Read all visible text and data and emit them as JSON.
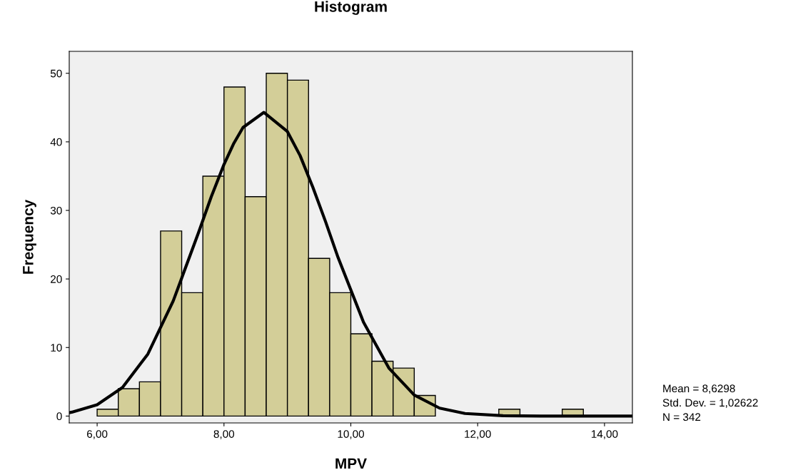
{
  "chart_data": {
    "type": "histogram",
    "title": "Histogram",
    "xlabel": "MPV",
    "ylabel": "Frequency",
    "bins": [
      6.0,
      6.3333,
      6.6667,
      7.0,
      7.3333,
      7.6667,
      8.0,
      8.3333,
      8.6667,
      9.0,
      9.3333,
      9.6667,
      10.0,
      10.3333,
      10.6667,
      11.0,
      11.3333,
      11.6667,
      12.0,
      12.3333,
      12.6667,
      13.0,
      13.3333,
      13.6667
    ],
    "values": [
      1,
      4,
      5,
      27,
      18,
      35,
      48,
      32,
      50,
      49,
      23,
      18,
      12,
      8,
      7,
      3,
      0,
      0,
      0,
      1,
      0,
      0,
      1
    ],
    "color": "#d3ce98",
    "series": [
      {
        "type": "line",
        "color": "#000000",
        "x": [
          5.56,
          5.6,
          6.0,
          6.4,
          6.8,
          7.2,
          7.6,
          7.8,
          8.0,
          8.15,
          8.3,
          8.63,
          9.0,
          9.2,
          9.4,
          9.6,
          9.8,
          10.2,
          10.6,
          11.0,
          11.4,
          11.8,
          12.4,
          13.0,
          14.44
        ],
        "values": [
          0.5,
          0.57,
          1.66,
          4.18,
          9.05,
          16.8,
          26.8,
          32.0,
          36.7,
          39.7,
          42.1,
          44.3,
          41.5,
          38.0,
          33.4,
          28.4,
          23.1,
          13.7,
          7.0,
          3.07,
          1.16,
          0.38,
          0.05,
          0.0,
          0.0
        ]
      }
    ],
    "xlim": [
      5.56,
      14.44
    ],
    "ylim": [
      -1.0,
      53.2
    ],
    "xticks": [
      {
        "value": 6,
        "label": "6,00"
      },
      {
        "value": 8,
        "label": "8,00"
      },
      {
        "value": 10,
        "label": "10,00"
      },
      {
        "value": 12,
        "label": "12,00"
      },
      {
        "value": 14,
        "label": "14,00"
      }
    ],
    "yticks": [
      0,
      10,
      20,
      30,
      40,
      50
    ],
    "annotations": [
      "Mean = 8,6298",
      "Std. Dev. = 1,02622",
      "N = 342"
    ]
  }
}
